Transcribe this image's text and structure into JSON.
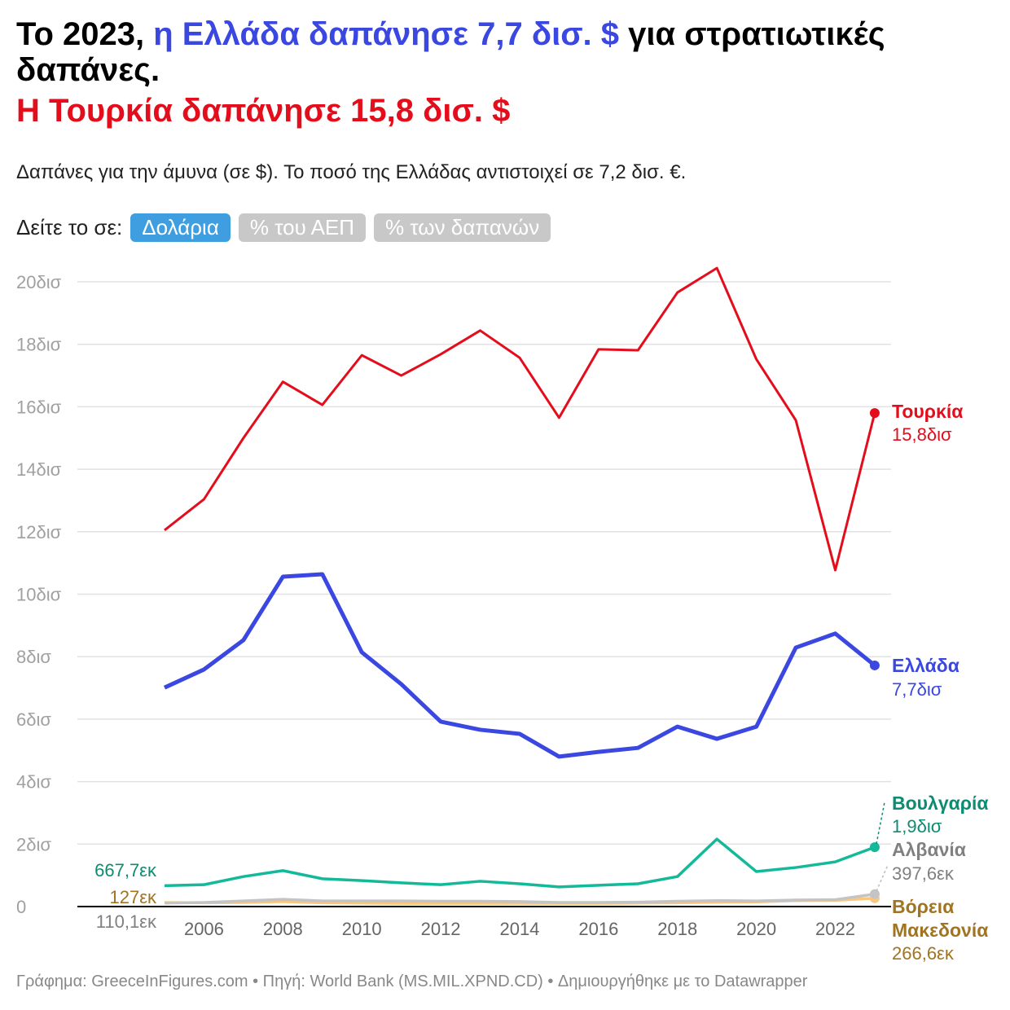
{
  "header": {
    "title_a": "Το 2023, ",
    "title_b": "η Ελλάδα δαπάνησε 7,7 δισ. $",
    "title_c": " για στρατιωτικές δαπάνες.",
    "title_d": "Η Τουρκία δαπάνησε 15,8 δισ. $",
    "subtitle": "Δαπάνες για την άμυνα (σε $). Το ποσό της Ελλάδας αντιστοιχεί σε 7,2 δισ. €."
  },
  "toggle": {
    "label": "Δείτε το σε:",
    "options": [
      "Δολάρια",
      "% του ΑΕΠ",
      "% των δαπανών"
    ],
    "selected": "Δολάρια"
  },
  "footer": "Γράφημα: GreeceInFigures.com • Πηγή: World Bank (MS.MIL.XPND.CD) • Δημιουργήθηκε με το Datawrapper",
  "chart_data": {
    "type": "line",
    "x": [
      2005,
      2006,
      2007,
      2008,
      2009,
      2010,
      2011,
      2012,
      2013,
      2014,
      2015,
      2016,
      2017,
      2018,
      2019,
      2020,
      2021,
      2022,
      2023
    ],
    "xticks": [
      "2006",
      "2008",
      "2010",
      "2012",
      "2014",
      "2016",
      "2018",
      "2020",
      "2022"
    ],
    "yticks": [
      "0",
      "2δισ",
      "4δισ",
      "6δισ",
      "8δισ",
      "10δισ",
      "12δισ",
      "14δισ",
      "16δισ",
      "18δισ",
      "20δισ"
    ],
    "ylim": [
      0,
      20.5
    ],
    "unit": "billion USD",
    "grid": true,
    "series": [
      {
        "name": "Τουρκία",
        "color": "#e30d1c",
        "end_label": "15,8δισ",
        "values": [
          12.05,
          13.04,
          15.0,
          16.8,
          16.06,
          17.65,
          17.0,
          17.68,
          18.44,
          17.57,
          15.65,
          17.84,
          17.81,
          19.66,
          20.44,
          17.52,
          15.57,
          10.77,
          15.8
        ]
      },
      {
        "name": "Ελλάδα",
        "color": "#3a47e0",
        "end_label": "7,7δισ",
        "values": [
          7.01,
          7.59,
          8.53,
          10.56,
          10.64,
          8.14,
          7.12,
          5.92,
          5.66,
          5.53,
          4.8,
          4.95,
          5.08,
          5.76,
          5.37,
          5.76,
          8.29,
          8.74,
          7.72
        ]
      },
      {
        "name": "Βουλγαρία",
        "color": "#14b99a",
        "label_color": "#0c8c72",
        "end_label": "1,9δισ",
        "start_label": "667,7εκ",
        "values": [
          0.668,
          0.7,
          0.96,
          1.15,
          0.89,
          0.83,
          0.76,
          0.7,
          0.81,
          0.73,
          0.63,
          0.68,
          0.73,
          0.96,
          2.16,
          1.12,
          1.25,
          1.43,
          1.9
        ]
      },
      {
        "name": "Αλβανία",
        "color": "#c4c4c4",
        "label_color": "#808080",
        "end_label": "397,6εκ",
        "start_label": "110,1εκ",
        "values": [
          0.11,
          0.13,
          0.18,
          0.23,
          0.18,
          0.18,
          0.18,
          0.17,
          0.17,
          0.16,
          0.13,
          0.13,
          0.14,
          0.17,
          0.19,
          0.18,
          0.21,
          0.22,
          0.398
        ]
      },
      {
        "name": "Βόρεια Μακεδονία",
        "color": "#fcc77a",
        "label_color": "#a07420",
        "end_label": "266,6εκ",
        "start_label": "127εκ",
        "values": [
          0.127,
          0.12,
          0.13,
          0.16,
          0.12,
          0.11,
          0.1,
          0.1,
          0.1,
          0.1,
          0.1,
          0.1,
          0.11,
          0.12,
          0.14,
          0.15,
          0.19,
          0.2,
          0.267
        ]
      }
    ]
  }
}
